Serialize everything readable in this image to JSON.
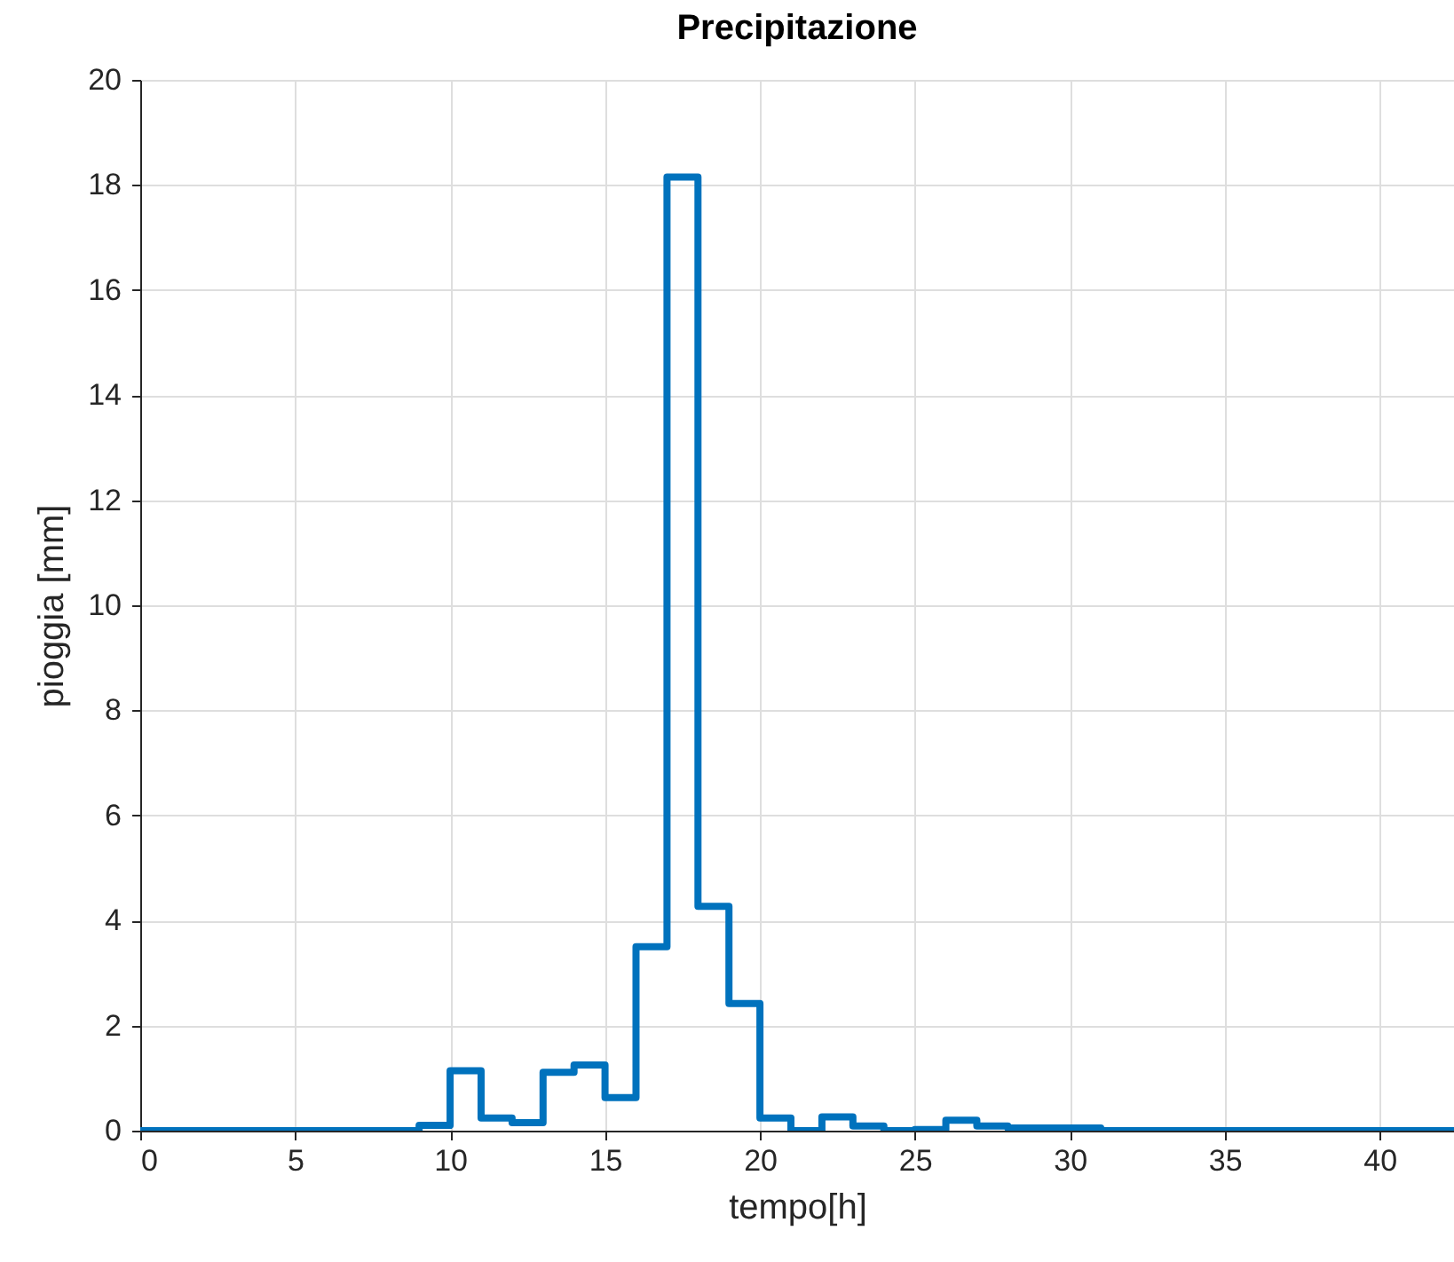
{
  "chart_data": {
    "type": "histogram",
    "title": "Precipitazione",
    "xlabel": "tempo[h]",
    "ylabel": "pioggia [mm]",
    "bins": [
      0,
      1,
      2,
      3,
      4,
      5,
      6,
      7,
      8,
      9,
      10,
      11,
      12,
      13,
      14,
      15,
      16,
      17,
      18,
      19,
      20,
      21,
      22,
      23,
      24,
      25,
      26,
      27,
      28,
      29,
      30,
      31,
      32,
      33,
      34,
      35,
      36,
      37,
      38,
      39,
      40,
      41,
      42,
      42.4
    ],
    "values": [
      0,
      0,
      0,
      0,
      0,
      0,
      0,
      0,
      0,
      0.1,
      1.14,
      0.24,
      0.15,
      1.11,
      1.25,
      0.63,
      3.5,
      18.15,
      4.27,
      2.42,
      0.24,
      0,
      0.26,
      0.09,
      0,
      0.02,
      0.2,
      0.09,
      0.05,
      0.05,
      0.05,
      0,
      0,
      0,
      0,
      0,
      0,
      0,
      0,
      0,
      0,
      0,
      0
    ],
    "color": "#0072bd",
    "xlim": [
      0,
      42.4
    ],
    "xticks": [
      0,
      5,
      10,
      15,
      20,
      25,
      30,
      35,
      40
    ],
    "ylim": [
      0,
      20
    ],
    "yticks": [
      0,
      2,
      4,
      6,
      8,
      10,
      12,
      14,
      16,
      18,
      20
    ],
    "grid": true
  }
}
